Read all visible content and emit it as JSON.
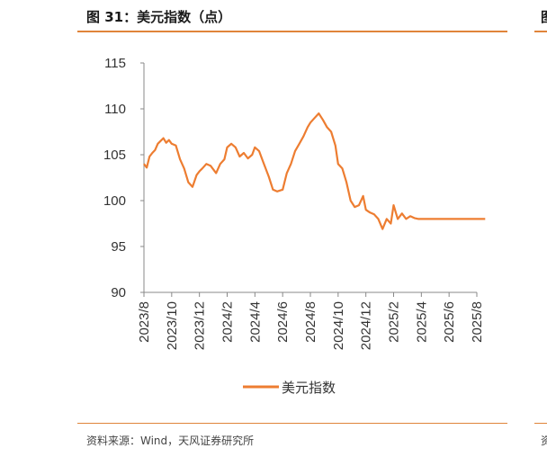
{
  "figure": {
    "title": "图 31：美元指数（点）",
    "next_title_fragment": "图",
    "source": "资料来源：Wind，天风证券研究所",
    "next_source_fragment": "资"
  },
  "colors": {
    "accent": "#e0843a",
    "line": "#ed7d31",
    "axis": "#888888"
  },
  "chart_data": {
    "type": "line",
    "title": "美元指数（点）",
    "xlabel": "",
    "ylabel": "",
    "ylim": [
      90,
      115
    ],
    "yticks": [
      "115",
      "110",
      "105",
      "100",
      "95",
      "90"
    ],
    "x_ticks": [
      "2023/8",
      "2023/10",
      "2023/12",
      "2024/2",
      "2024/4",
      "2024/6",
      "2024/8",
      "2024/10",
      "2024/12",
      "2025/2",
      "2025/4",
      "2025/6",
      "2025/8"
    ],
    "series": [
      {
        "name": "美元指数",
        "x_months": [
          0,
          0.2,
          0.4,
          0.6,
          0.8,
          1.0,
          1.2,
          1.4,
          1.6,
          1.8,
          2.0,
          2.3,
          2.6,
          2.9,
          3.2,
          3.5,
          3.8,
          4.0,
          4.2,
          4.5,
          4.8,
          5.0,
          5.2,
          5.5,
          5.8,
          6.0,
          6.3,
          6.6,
          6.9,
          7.2,
          7.5,
          7.8,
          8.0,
          8.3,
          8.6,
          9.0,
          9.3,
          9.6,
          10.0,
          10.3,
          10.6,
          10.9,
          11.2,
          11.5,
          11.8,
          12.0,
          12.3,
          12.6,
          12.9,
          13.2,
          13.5,
          13.8,
          14.0,
          14.3,
          14.6,
          14.9,
          15.2,
          15.5,
          15.8,
          16.0,
          16.3,
          16.6,
          16.9,
          17.2,
          17.5,
          17.8,
          18.0,
          18.3,
          18.6,
          18.9,
          19.2,
          19.5,
          19.8,
          20.0,
          20.3,
          20.6,
          20.9,
          21.2,
          21.5,
          21.8,
          22.0,
          22.3,
          22.6,
          22.9,
          23.2,
          23.5,
          23.8,
          24.0,
          24.3,
          24.6
        ],
        "values": [
          104.0,
          103.6,
          104.8,
          105.2,
          105.5,
          106.2,
          106.5,
          106.8,
          106.3,
          106.6,
          106.2,
          106.0,
          104.5,
          103.5,
          102.0,
          101.5,
          102.8,
          103.2,
          103.5,
          104.0,
          103.8,
          103.4,
          103.0,
          104.0,
          104.5,
          105.8,
          106.2,
          105.8,
          104.8,
          105.2,
          104.6,
          105.0,
          105.8,
          105.4,
          104.2,
          102.6,
          101.2,
          101.0,
          101.2,
          103.0,
          104.0,
          105.4,
          106.2,
          107.0,
          108.0,
          108.5,
          109.0,
          109.5,
          108.8,
          108.0,
          107.5,
          106.0,
          104.0,
          103.5,
          102.0,
          100.0,
          99.3,
          99.5,
          100.5,
          99.0,
          98.7,
          98.5,
          98.0,
          96.9,
          98.0,
          97.5,
          99.5,
          98.0,
          98.6,
          98.0,
          98.3,
          98.1,
          98.0,
          98.0,
          98.0,
          98.0,
          98.0,
          98.0,
          98.0,
          98.0,
          98.0,
          98.0,
          98.0,
          98.0,
          98.0,
          98.0,
          98.0,
          98.0,
          98.0,
          98.0
        ]
      }
    ],
    "legend": {
      "position": "bottom",
      "label": "美元指数"
    }
  }
}
